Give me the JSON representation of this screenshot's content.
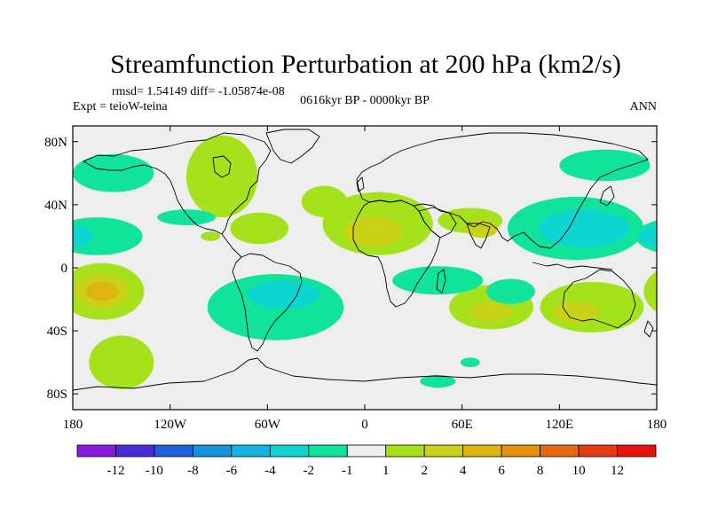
{
  "chart_data": {
    "type": "heatmap",
    "title": "Streamfunction Perturbation at 200 hPa (km2/s)",
    "stats_line": "rmsd= 1.54149 diff= -1.05874e-08",
    "left_label": "Expt = teioW-teina",
    "center_label": "0616kyr BP - 0000kyr BP",
    "right_label": "ANN",
    "x_ticks": [
      "180",
      "120W",
      "60W",
      "0",
      "60E",
      "120E",
      "180"
    ],
    "y_ticks": [
      "80N",
      "40N",
      "0",
      "40S",
      "80S"
    ],
    "x_range": [
      -180,
      180
    ],
    "y_range": [
      -90,
      90
    ],
    "colorbar": {
      "labels": [
        "-12",
        "-10",
        "-8",
        "-6",
        "-4",
        "-2",
        "-1",
        "1",
        "2",
        "4",
        "6",
        "8",
        "10",
        "12"
      ],
      "colors": [
        "#8a1be0",
        "#4b2bd8",
        "#1f5fd9",
        "#1793dc",
        "#14b6e0",
        "#0fd5d0",
        "#10e39a",
        "#eeeeee",
        "#a6e21c",
        "#c8d317",
        "#e0b40f",
        "#e69110",
        "#e86812",
        "#e83b14",
        "#e8120f"
      ]
    },
    "regions": [
      {
        "lon": 8,
        "lat": 28,
        "rx": 34,
        "ry": 20,
        "level": 1
      },
      {
        "lon": 5,
        "lat": 23,
        "rx": 18,
        "ry": 10,
        "level": 2
      },
      {
        "lon": -88,
        "lat": 58,
        "rx": 22,
        "ry": 26,
        "level": 1
      },
      {
        "lon": -65,
        "lat": 25,
        "rx": 18,
        "ry": 10,
        "level": 1
      },
      {
        "lon": -25,
        "lat": 42,
        "rx": 14,
        "ry": 10,
        "level": 1
      },
      {
        "lon": 65,
        "lat": 30,
        "rx": 20,
        "ry": 8,
        "level": 1
      },
      {
        "lon": 72,
        "lat": 25,
        "rx": 10,
        "ry": 6,
        "level": 2
      },
      {
        "lon": -162,
        "lat": -15,
        "rx": 26,
        "ry": 18,
        "level": 1
      },
      {
        "lon": -162,
        "lat": -15,
        "rx": 17,
        "ry": 11,
        "level": 2
      },
      {
        "lon": -162,
        "lat": -15,
        "rx": 10,
        "ry": 6,
        "level": 3
      },
      {
        "lon": 78,
        "lat": -25,
        "rx": 26,
        "ry": 14,
        "level": 1
      },
      {
        "lon": 78,
        "lat": -28,
        "rx": 13,
        "ry": 6,
        "level": 2
      },
      {
        "lon": 140,
        "lat": -25,
        "rx": 32,
        "ry": 16,
        "level": 1
      },
      {
        "lon": 130,
        "lat": -28,
        "rx": 14,
        "ry": 7,
        "level": 2
      },
      {
        "lon": -150,
        "lat": -60,
        "rx": 20,
        "ry": 17,
        "level": 1
      },
      {
        "lon": -55,
        "lat": -25,
        "rx": 42,
        "ry": 21,
        "level": -1
      },
      {
        "lon": -50,
        "lat": -17,
        "rx": 22,
        "ry": 9,
        "level": -2
      },
      {
        "lon": 45,
        "lat": -8,
        "rx": 28,
        "ry": 9,
        "level": -1
      },
      {
        "lon": 130,
        "lat": 25,
        "rx": 42,
        "ry": 20,
        "level": -1
      },
      {
        "lon": 135,
        "lat": 25,
        "rx": 28,
        "ry": 12,
        "level": -2
      },
      {
        "lon": -165,
        "lat": 20,
        "rx": 28,
        "ry": 12,
        "level": -1
      },
      {
        "lon": -180,
        "lat": 20,
        "rx": 12,
        "ry": 7,
        "level": -2
      },
      {
        "lon": -155,
        "lat": 60,
        "rx": 25,
        "ry": 12,
        "level": -1
      },
      {
        "lon": 148,
        "lat": 65,
        "rx": 28,
        "ry": 10,
        "level": -1
      },
      {
        "lon": 90,
        "lat": -15,
        "rx": 15,
        "ry": 8,
        "level": -1
      },
      {
        "lon": 45,
        "lat": -72,
        "rx": 11,
        "ry": 4,
        "level": -1
      },
      {
        "lon": 65,
        "lat": -60,
        "rx": 6,
        "ry": 3,
        "level": -1
      },
      {
        "lon": -110,
        "lat": 32,
        "rx": 18,
        "ry": 5,
        "level": -1
      },
      {
        "lon": -95,
        "lat": 20,
        "rx": 6,
        "ry": 3,
        "level": 1
      }
    ]
  }
}
